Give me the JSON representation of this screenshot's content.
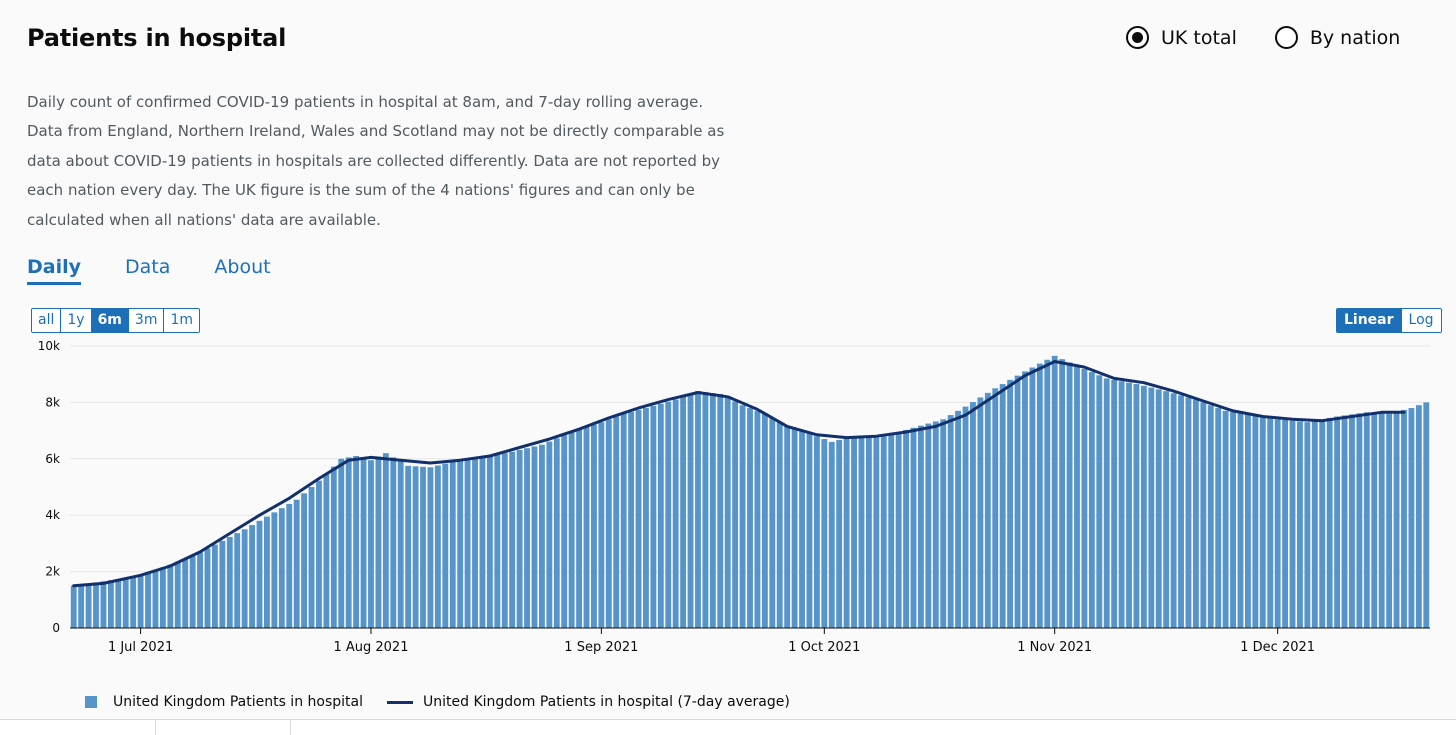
{
  "title": "Patients in hospital",
  "radios": [
    {
      "label": "UK total",
      "checked": true
    },
    {
      "label": "By nation",
      "checked": false
    }
  ],
  "description": "Daily count of confirmed COVID-19 patients in hospital at 8am, and 7-day rolling average. Data from England, Northern Ireland, Wales and Scotland may not be directly comparable as data about COVID-19 patients in hospitals are collected differently. Data are not reported by each nation every day. The UK figure is the sum of the 4 nations' figures and can only be calculated when all nations' data are available.",
  "tabs": [
    {
      "label": "Daily",
      "active": true
    },
    {
      "label": "Data",
      "active": false
    },
    {
      "label": "About",
      "active": false
    }
  ],
  "range_buttons": [
    {
      "label": "all",
      "active": false
    },
    {
      "label": "1y",
      "active": false
    },
    {
      "label": "6m",
      "active": true
    },
    {
      "label": "3m",
      "active": false
    },
    {
      "label": "1m",
      "active": false
    }
  ],
  "scale_buttons": [
    {
      "label": "Linear",
      "active": true
    },
    {
      "label": "Log",
      "active": false
    }
  ],
  "colors": {
    "bar": "#5694ca",
    "line": "#12306b",
    "accent": "#1d70b8"
  },
  "legend": {
    "bars": "United Kingdom Patients in hospital",
    "line": "United Kingdom Patients in hospital (7-day average)"
  },
  "chart_data": {
    "type": "bar",
    "x_range": [
      "2021-06-22",
      "2021-12-21"
    ],
    "ylim": [
      0,
      10000
    ],
    "yticks": [
      {
        "value": 0,
        "label": "0"
      },
      {
        "value": 2000,
        "label": "2k"
      },
      {
        "value": 4000,
        "label": "4k"
      },
      {
        "value": 6000,
        "label": "6k"
      },
      {
        "value": 8000,
        "label": "8k"
      },
      {
        "value": 10000,
        "label": "10k"
      }
    ],
    "xticks": [
      {
        "date": "2021-07-01",
        "label": "1 Jul 2021"
      },
      {
        "date": "2021-08-01",
        "label": "1 Aug 2021"
      },
      {
        "date": "2021-09-01",
        "label": "1 Sep 2021"
      },
      {
        "date": "2021-10-01",
        "label": "1 Oct 2021"
      },
      {
        "date": "2021-11-01",
        "label": "1 Nov 2021"
      },
      {
        "date": "2021-12-01",
        "label": "1 Dec 2021"
      }
    ],
    "grid": true,
    "series": [
      {
        "kind": "bar",
        "anchors": [
          [
            "2021-06-22",
            1500
          ],
          [
            "2021-07-01",
            1850
          ],
          [
            "2021-07-08",
            2550
          ],
          [
            "2021-07-15",
            3500
          ],
          [
            "2021-07-22",
            4550
          ],
          [
            "2021-07-26",
            5450
          ],
          [
            "2021-07-28",
            6000
          ],
          [
            "2021-07-30",
            6100
          ],
          [
            "2021-08-01",
            5950
          ],
          [
            "2021-08-03",
            6200
          ],
          [
            "2021-08-06",
            5750
          ],
          [
            "2021-08-09",
            5700
          ],
          [
            "2021-08-13",
            5950
          ],
          [
            "2021-08-16",
            6050
          ],
          [
            "2021-08-20",
            6250
          ],
          [
            "2021-08-24",
            6500
          ],
          [
            "2021-08-28",
            6950
          ],
          [
            "2021-09-01",
            7300
          ],
          [
            "2021-09-04",
            7600
          ],
          [
            "2021-09-07",
            7800
          ],
          [
            "2021-09-11",
            8100
          ],
          [
            "2021-09-14",
            8400
          ],
          [
            "2021-09-17",
            8300
          ],
          [
            "2021-09-20",
            7900
          ],
          [
            "2021-09-23",
            7600
          ],
          [
            "2021-09-26",
            7150
          ],
          [
            "2021-09-29",
            6900
          ],
          [
            "2021-10-02",
            6600
          ],
          [
            "2021-10-05",
            6800
          ],
          [
            "2021-10-09",
            6800
          ],
          [
            "2021-10-13",
            7100
          ],
          [
            "2021-10-17",
            7400
          ],
          [
            "2021-10-20",
            7850
          ],
          [
            "2021-10-24",
            8500
          ],
          [
            "2021-10-28",
            9100
          ],
          [
            "2021-11-01",
            9650
          ],
          [
            "2021-11-04",
            9300
          ],
          [
            "2021-11-08",
            8850
          ],
          [
            "2021-11-12",
            8650
          ],
          [
            "2021-11-16",
            8400
          ],
          [
            "2021-11-20",
            8100
          ],
          [
            "2021-11-24",
            7700
          ],
          [
            "2021-11-28",
            7550
          ],
          [
            "2021-12-01",
            7400
          ],
          [
            "2021-12-05",
            7300
          ],
          [
            "2021-12-09",
            7500
          ],
          [
            "2021-12-13",
            7650
          ],
          [
            "2021-12-16",
            7600
          ],
          [
            "2021-12-19",
            7800
          ],
          [
            "2021-12-21",
            8000
          ]
        ]
      },
      {
        "kind": "line",
        "points": [
          [
            "2021-06-22",
            1500
          ],
          [
            "2021-06-26",
            1580
          ],
          [
            "2021-07-01",
            1870
          ],
          [
            "2021-07-05",
            2200
          ],
          [
            "2021-07-09",
            2700
          ],
          [
            "2021-07-13",
            3350
          ],
          [
            "2021-07-17",
            4000
          ],
          [
            "2021-07-21",
            4600
          ],
          [
            "2021-07-25",
            5300
          ],
          [
            "2021-07-29",
            5950
          ],
          [
            "2021-08-01",
            6050
          ],
          [
            "2021-08-05",
            5950
          ],
          [
            "2021-08-09",
            5850
          ],
          [
            "2021-08-13",
            5950
          ],
          [
            "2021-08-17",
            6100
          ],
          [
            "2021-08-21",
            6400
          ],
          [
            "2021-08-25",
            6700
          ],
          [
            "2021-08-29",
            7050
          ],
          [
            "2021-09-02",
            7450
          ],
          [
            "2021-09-06",
            7800
          ],
          [
            "2021-09-10",
            8100
          ],
          [
            "2021-09-14",
            8350
          ],
          [
            "2021-09-18",
            8200
          ],
          [
            "2021-09-22",
            7750
          ],
          [
            "2021-09-26",
            7150
          ],
          [
            "2021-09-30",
            6850
          ],
          [
            "2021-10-04",
            6750
          ],
          [
            "2021-10-08",
            6800
          ],
          [
            "2021-10-12",
            6950
          ],
          [
            "2021-10-16",
            7150
          ],
          [
            "2021-10-20",
            7550
          ],
          [
            "2021-10-24",
            8250
          ],
          [
            "2021-10-28",
            8950
          ],
          [
            "2021-11-01",
            9450
          ],
          [
            "2021-11-05",
            9250
          ],
          [
            "2021-11-09",
            8850
          ],
          [
            "2021-11-13",
            8700
          ],
          [
            "2021-11-17",
            8400
          ],
          [
            "2021-11-21",
            8050
          ],
          [
            "2021-11-25",
            7700
          ],
          [
            "2021-11-29",
            7500
          ],
          [
            "2021-12-03",
            7400
          ],
          [
            "2021-12-07",
            7350
          ],
          [
            "2021-12-11",
            7500
          ],
          [
            "2021-12-15",
            7650
          ],
          [
            "2021-12-18",
            7650
          ]
        ]
      }
    ]
  }
}
